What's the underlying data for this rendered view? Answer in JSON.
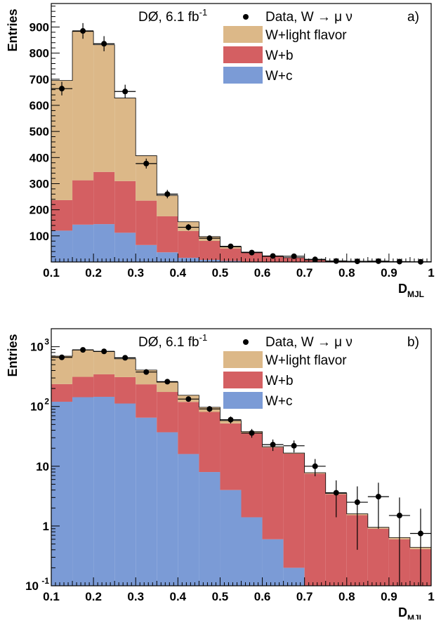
{
  "chart_data": [
    {
      "type": "stacked-histogram",
      "panel_label": "a)",
      "experiment_label": "DØ, 6.1 fb",
      "experiment_label_sup": "-1",
      "xlabel": "D",
      "xlabel_sub": "MJL",
      "ylabel": "Entries",
      "y_scale": "linear",
      "xlim": [
        0.1,
        1.0
      ],
      "ylim": [
        0,
        990
      ],
      "x_ticks": [
        0.1,
        0.2,
        0.3,
        0.4,
        0.5,
        0.6,
        0.7,
        0.8,
        0.9,
        1.0
      ],
      "x_tick_labels": [
        "0.1",
        "0.2",
        "0.3",
        "0.4",
        "0.5",
        "0.6",
        "0.7",
        "0.8",
        "0.9",
        "1"
      ],
      "y_ticks": [
        100,
        200,
        300,
        400,
        500,
        600,
        700,
        800,
        900
      ],
      "y_tick_labels": [
        "100",
        "200",
        "300",
        "400",
        "500",
        "600",
        "700",
        "800",
        "900"
      ],
      "legend_position": "top-right",
      "bin_edges": [
        0.1,
        0.15,
        0.2,
        0.25,
        0.3,
        0.35,
        0.4,
        0.45,
        0.5,
        0.55,
        0.6,
        0.65,
        0.7,
        0.75,
        0.8,
        0.85,
        0.9,
        0.95,
        1.0
      ],
      "stack": [
        {
          "name": "W+c",
          "color": "#7b9bd6",
          "values": [
            120,
            143,
            145,
            112,
            65,
            37,
            16,
            8,
            4,
            1.4,
            0.6,
            0.2,
            0.1,
            0.05,
            0.02,
            0.02,
            0.01,
            0.01
          ]
        },
        {
          "name": "W+b",
          "color": "#d45f62",
          "values": [
            117,
            170,
            200,
            198,
            170,
            138,
            103,
            73,
            48,
            34,
            20,
            16,
            7.4,
            3.35,
            1.5,
            0.88,
            0.59,
            0.4
          ]
        },
        {
          "name": "W+light flavor",
          "color": "#dcb888",
          "values": [
            458,
            570,
            487,
            318,
            172,
            80,
            35,
            16,
            6,
            2.6,
            0.6,
            0.4,
            0.3,
            0.1,
            0.08,
            0.05,
            0.04,
            0.03
          ]
        }
      ],
      "data": {
        "name": "Data, W → μ ν",
        "x": [
          0.125,
          0.175,
          0.225,
          0.275,
          0.325,
          0.375,
          0.425,
          0.475,
          0.525,
          0.575,
          0.625,
          0.675,
          0.725,
          0.775,
          0.825,
          0.875,
          0.925,
          0.975
        ],
        "y": [
          664,
          885,
          836,
          653,
          377,
          260,
          133,
          91,
          60,
          36,
          23,
          22,
          10,
          3.6,
          2.5,
          3.1,
          1.5,
          0.75
        ],
        "err": [
          26,
          30,
          29,
          26,
          19,
          16,
          12,
          10,
          8,
          6,
          5,
          5,
          3.2,
          2.2,
          2.1,
          2.2,
          1.5,
          1.2
        ]
      }
    },
    {
      "type": "stacked-histogram",
      "panel_label": "b)",
      "experiment_label": "DØ, 6.1 fb",
      "experiment_label_sup": "-1",
      "xlabel": "D",
      "xlabel_sub": "MJL",
      "ylabel": "Entries",
      "y_scale": "log",
      "xlim": [
        0.1,
        1.0
      ],
      "ylim": [
        0.1,
        2000
      ],
      "x_ticks": [
        0.1,
        0.2,
        0.3,
        0.4,
        0.5,
        0.6,
        0.7,
        0.8,
        0.9,
        1.0
      ],
      "x_tick_labels": [
        "0.1",
        "0.2",
        "0.3",
        "0.4",
        "0.5",
        "0.6",
        "0.7",
        "0.8",
        "0.9",
        "1"
      ],
      "y_ticks": [
        0.1,
        1,
        10,
        100,
        1000
      ],
      "y_tick_labels": [
        {
          "base": "10",
          "exp": "-1"
        },
        {
          "base": "1",
          "exp": ""
        },
        {
          "base": "10",
          "exp": ""
        },
        {
          "base": "10",
          "exp": "2"
        },
        {
          "base": "10",
          "exp": "3"
        }
      ],
      "legend_position": "top-right",
      "bin_edges": [
        0.1,
        0.15,
        0.2,
        0.25,
        0.3,
        0.35,
        0.4,
        0.45,
        0.5,
        0.55,
        0.6,
        0.65,
        0.7,
        0.75,
        0.8,
        0.85,
        0.9,
        0.95,
        1.0
      ],
      "stack": [
        {
          "name": "W+c",
          "color": "#7b9bd6",
          "values": [
            120,
            143,
            145,
            112,
            65,
            37,
            16,
            8,
            4,
            1.4,
            0.6,
            0.2,
            0.1,
            0.05,
            0.02,
            0.02,
            0.01,
            0.01
          ]
        },
        {
          "name": "W+b",
          "color": "#d45f62",
          "values": [
            117,
            170,
            200,
            198,
            170,
            138,
            103,
            73,
            48,
            34,
            20,
            16,
            7.4,
            3.35,
            1.5,
            0.88,
            0.59,
            0.4
          ]
        },
        {
          "name": "W+light flavor",
          "color": "#dcb888",
          "values": [
            458,
            570,
            487,
            318,
            172,
            80,
            35,
            16,
            6,
            2.6,
            0.6,
            0.4,
            0.3,
            0.1,
            0.08,
            0.05,
            0.04,
            0.03
          ]
        }
      ],
      "data": {
        "name": "Data, W → μ ν",
        "x": [
          0.125,
          0.175,
          0.225,
          0.275,
          0.325,
          0.375,
          0.425,
          0.475,
          0.525,
          0.575,
          0.625,
          0.675,
          0.725,
          0.775,
          0.825,
          0.875,
          0.925,
          0.975
        ],
        "y": [
          664,
          885,
          836,
          653,
          377,
          260,
          133,
          91,
          60,
          36,
          23,
          22,
          10,
          3.6,
          2.5,
          3.1,
          1.5,
          0.75
        ],
        "err": [
          26,
          30,
          29,
          26,
          19,
          16,
          12,
          10,
          8,
          6,
          5,
          5,
          3.2,
          2.2,
          2.1,
          2.2,
          1.5,
          1.2
        ]
      }
    }
  ]
}
